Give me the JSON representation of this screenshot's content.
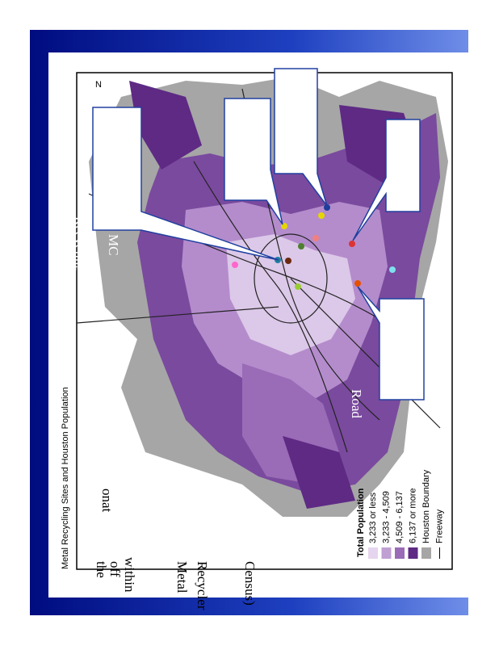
{
  "title": "Metal Recycling Sites and Houston Population",
  "legend": {
    "title": "Total Population",
    "entries": [
      "3,233 or less",
      "3,233 - 4,509",
      "4,509 - 6,137",
      "6,137 or more",
      "Houston Boundary",
      "Freeway"
    ]
  },
  "fragments": [
    "Census)",
    "Recycler",
    "Metal",
    "within",
    "off",
    "the",
    "onat",
    "Road",
    "Recycling",
    "MC"
  ]
}
